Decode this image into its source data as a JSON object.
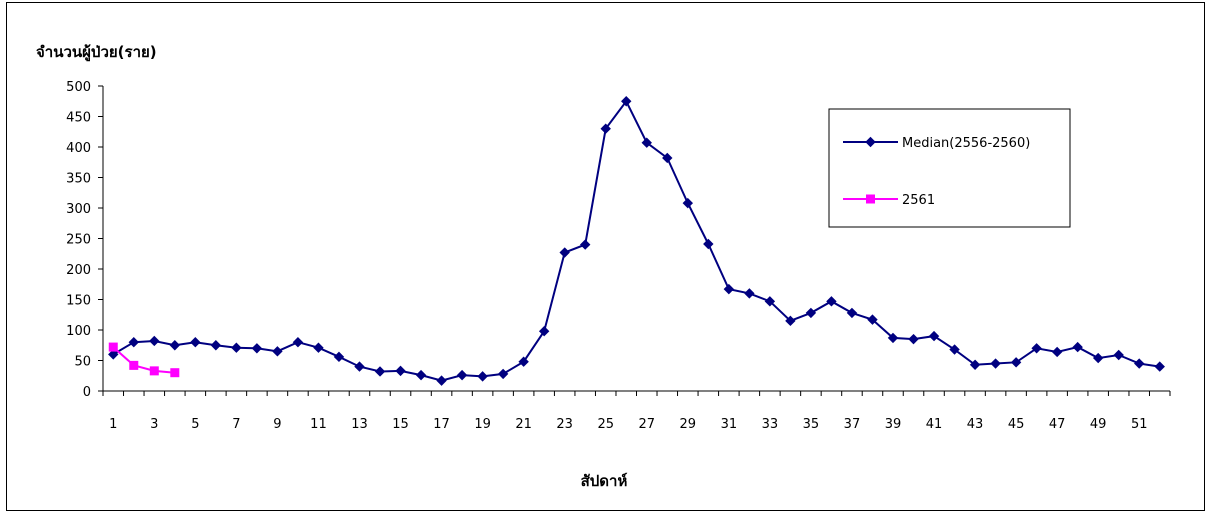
{
  "chart_data": {
    "type": "line",
    "ylabel": "จำนวนผู้ป่วย(ราย)",
    "xlabel": "สัปดาห์",
    "ylim": [
      0,
      500
    ],
    "yticks": [
      0,
      50,
      100,
      150,
      200,
      250,
      300,
      350,
      400,
      450,
      500
    ],
    "xlim": [
      1,
      52
    ],
    "xticks": [
      1,
      3,
      5,
      7,
      9,
      11,
      13,
      15,
      17,
      19,
      21,
      23,
      25,
      27,
      29,
      31,
      33,
      35,
      37,
      39,
      41,
      43,
      45,
      47,
      49,
      51
    ],
    "grid": false,
    "legend_position": "top-right",
    "series": [
      {
        "name": "Median(2556-2560)",
        "color": "#000080",
        "marker": "diamond",
        "x": [
          1,
          2,
          3,
          4,
          5,
          6,
          7,
          8,
          9,
          10,
          11,
          12,
          13,
          14,
          15,
          16,
          17,
          18,
          19,
          20,
          21,
          22,
          23,
          24,
          25,
          26,
          27,
          28,
          29,
          30,
          31,
          32,
          33,
          34,
          35,
          36,
          37,
          38,
          39,
          40,
          41,
          42,
          43,
          44,
          45,
          46,
          47,
          48,
          49,
          50,
          51,
          52
        ],
        "values": [
          60,
          80,
          82,
          75,
          80,
          75,
          71,
          70,
          65,
          80,
          71,
          56,
          40,
          32,
          33,
          26,
          17,
          26,
          24,
          28,
          48,
          98,
          227,
          240,
          430,
          475,
          407,
          382,
          308,
          241,
          167,
          160,
          147,
          115,
          128,
          147,
          128,
          117,
          87,
          85,
          90,
          68,
          43,
          45,
          47,
          70,
          64,
          72,
          54,
          59,
          45,
          40
        ]
      },
      {
        "name": "2561",
        "color": "#ff00ff",
        "marker": "square",
        "x": [
          1,
          2,
          3,
          4
        ],
        "values": [
          72,
          42,
          33,
          30
        ]
      }
    ]
  }
}
